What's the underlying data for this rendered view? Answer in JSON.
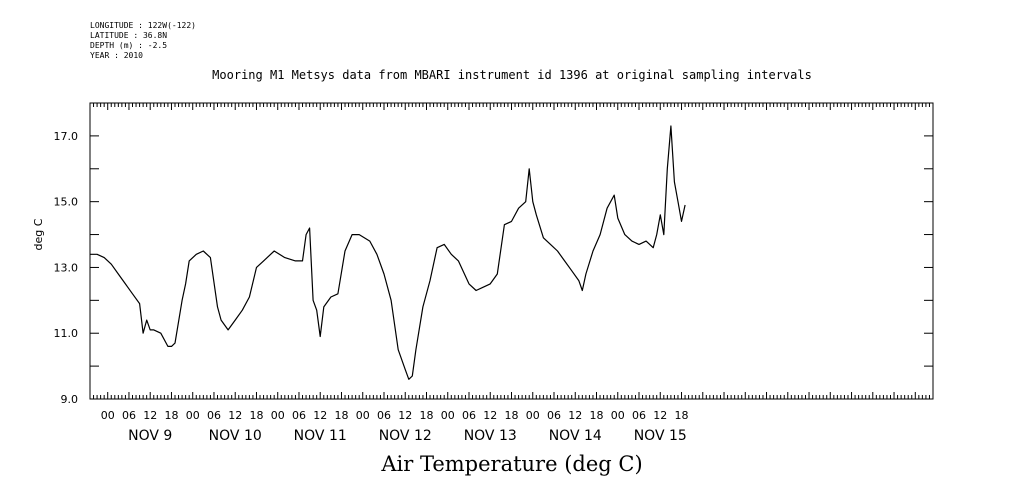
{
  "metadata": {
    "longitude": "LONGITUDE : 122W(-122)",
    "latitude": "LATITUDE : 36.8N",
    "depth": "DEPTH (m) : -2.5",
    "year": "YEAR : 2010"
  },
  "chart_data": {
    "type": "line",
    "title": "Mooring M1 Metsys data from MBARI instrument id 1396 at original sampling intervals",
    "xlabel": "Air Temperature (deg C)",
    "ylabel": "deg C",
    "ylim": [
      9.0,
      18.0
    ],
    "xlim_hours": [
      -5,
      233
    ],
    "y_ticks": [
      "9.0",
      "11.0",
      "13.0",
      "15.0",
      "17.0"
    ],
    "x_hour_ticks": [
      "00",
      "06",
      "12",
      "18"
    ],
    "x_days": [
      "NOV 9",
      "NOV 10",
      "NOV 11",
      "NOV 12",
      "NOV 13",
      "NOV 14",
      "NOV 15"
    ],
    "grid": false,
    "series": [
      {
        "x": [
          "NOV 8 19:00",
          "NOV 8 21:00",
          "NOV 8 23:00",
          "NOV 9 01:00",
          "NOV 9 03:00",
          "NOV 9 05:00",
          "NOV 9 07:00",
          "NOV 9 09:00",
          "NOV 9 10:00",
          "NOV 9 11:00",
          "NOV 9 12:00",
          "NOV 9 13:00",
          "NOV 9 15:00",
          "NOV 9 17:00",
          "NOV 9 18:00",
          "NOV 9 19:00",
          "NOV 9 21:00",
          "NOV 9 22:00",
          "NOV 9 23:00",
          "NOV 10 01:00",
          "NOV 10 03:00",
          "NOV 10 05:00",
          "NOV 10 07:00",
          "NOV 10 08:00",
          "NOV 10 10:00",
          "NOV 10 12:00",
          "NOV 10 14:00",
          "NOV 10 16:00",
          "NOV 10 18:00",
          "NOV 10 20:00",
          "NOV 10 23:00",
          "NOV 11 02:00",
          "NOV 11 05:00",
          "NOV 11 07:00",
          "NOV 11 08:00",
          "NOV 11 09:00",
          "NOV 11 10:00",
          "NOV 11 11:00",
          "NOV 11 12:00",
          "NOV 11 13:00",
          "NOV 11 15:00",
          "NOV 11 17:00",
          "NOV 11 19:00",
          "NOV 11 21:00",
          "NOV 11 23:00",
          "NOV 12 02:00",
          "NOV 12 04:00",
          "NOV 12 06:00",
          "NOV 12 08:00",
          "NOV 12 10:00",
          "NOV 12 12:00",
          "NOV 12 13:00",
          "NOV 12 14:00",
          "NOV 12 15:00",
          "NOV 12 17:00",
          "NOV 12 19:00",
          "NOV 12 21:00",
          "NOV 12 23:00",
          "NOV 13 01:00",
          "NOV 13 03:00",
          "NOV 13 06:00",
          "NOV 13 08:00",
          "NOV 13 10:00",
          "NOV 13 12:00",
          "NOV 13 14:00",
          "NOV 13 16:00",
          "NOV 13 18:00",
          "NOV 13 20:00",
          "NOV 13 22:00",
          "NOV 13 23:00",
          "NOV 14 00:00",
          "NOV 14 01:00",
          "NOV 14 03:00",
          "NOV 14 05:00",
          "NOV 14 07:00",
          "NOV 14 09:00",
          "NOV 14 11:00",
          "NOV 14 13:00",
          "NOV 14 14:00",
          "NOV 14 15:00",
          "NOV 14 17:00",
          "NOV 14 19:00",
          "NOV 14 21:00",
          "NOV 14 23:00",
          "NOV 15 00:00",
          "NOV 15 02:00",
          "NOV 15 04:00",
          "NOV 15 06:00",
          "NOV 15 08:00",
          "NOV 15 10:00",
          "NOV 15 11:00",
          "NOV 15 12:00",
          "NOV 15 13:00",
          "NOV 15 14:00",
          "NOV 15 15:00",
          "NOV 15 16:00",
          "NOV 15 17:00",
          "NOV 15 18:00",
          "NOV 15 19:00"
        ],
        "values": [
          13.4,
          13.4,
          13.3,
          13.1,
          12.8,
          12.5,
          12.2,
          11.9,
          11.0,
          11.4,
          11.1,
          11.1,
          11.0,
          10.6,
          10.6,
          10.7,
          12.0,
          12.5,
          13.2,
          13.4,
          13.5,
          13.3,
          11.8,
          11.4,
          11.1,
          11.4,
          11.7,
          12.1,
          13.0,
          13.2,
          13.5,
          13.3,
          13.2,
          13.2,
          14.0,
          14.2,
          12.0,
          11.7,
          10.9,
          11.8,
          12.1,
          12.2,
          13.5,
          14.0,
          14.0,
          13.8,
          13.4,
          12.8,
          12.0,
          10.5,
          9.9,
          9.6,
          9.7,
          10.5,
          11.8,
          12.6,
          13.6,
          13.7,
          13.4,
          13.2,
          12.5,
          12.3,
          12.4,
          12.5,
          12.8,
          14.3,
          14.4,
          14.8,
          15.0,
          16.0,
          15.0,
          14.6,
          13.9,
          13.7,
          13.5,
          13.2,
          12.9,
          12.6,
          12.3,
          12.8,
          13.5,
          14.0,
          14.8,
          15.2,
          14.5,
          14.0,
          13.8,
          13.7,
          13.8,
          13.6,
          14.0,
          14.6,
          14.0,
          16.0,
          17.3,
          15.6,
          15.0,
          14.4,
          14.9
        ]
      }
    ]
  }
}
